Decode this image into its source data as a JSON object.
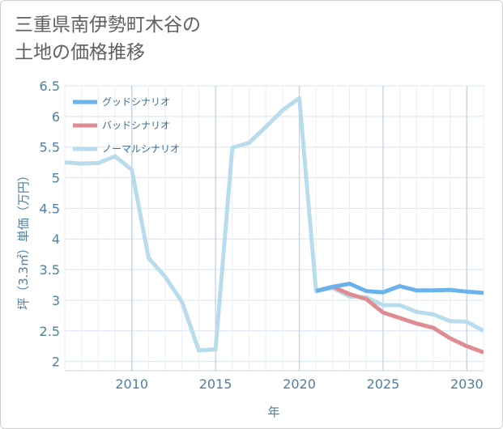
{
  "chart_data": {
    "type": "line",
    "title": "三重県南伊勢町木谷の土地の価格推移",
    "title_lines": [
      "三重県南伊勢町木谷の",
      "土地の価格推移"
    ],
    "xlabel": "年",
    "ylabel": "坪（3.3㎡）単価（万円）",
    "xlim": [
      2006,
      2031
    ],
    "ylim": [
      1.85,
      6.5
    ],
    "xticks": [
      2010,
      2015,
      2020,
      2025,
      2030
    ],
    "yticks": [
      2,
      2.5,
      3,
      3.5,
      4,
      4.5,
      5,
      5.5,
      6,
      6.5
    ],
    "ytick_labels": [
      "2",
      "2.5",
      "3",
      "3.5",
      "4",
      "4.5",
      "5",
      "5.5",
      "6",
      "6.5"
    ],
    "grid": true,
    "legend_position": "top-left",
    "series": [
      {
        "name": "グッドシナリオ",
        "color": "#6ab2ea",
        "x": [
          2021,
          2022,
          2023,
          2024,
          2025,
          2026,
          2027,
          2028,
          2029,
          2030,
          2031
        ],
        "values": [
          3.15,
          3.22,
          3.27,
          3.15,
          3.13,
          3.23,
          3.16,
          3.16,
          3.17,
          3.14,
          3.12
        ]
      },
      {
        "name": "バッドシナリオ",
        "color": "#de8c92",
        "x": [
          2021,
          2022,
          2023,
          2024,
          2025,
          2026,
          2027,
          2028,
          2029,
          2030,
          2031
        ],
        "values": [
          3.15,
          3.22,
          3.1,
          3.02,
          2.8,
          2.71,
          2.62,
          2.55,
          2.38,
          2.25,
          2.15
        ]
      },
      {
        "name": "ノーマルシナリオ",
        "color": "#b9dced",
        "x": [
          2006,
          2007,
          2008,
          2009,
          2010,
          2011,
          2012,
          2013,
          2014,
          2015,
          2016,
          2017,
          2018,
          2019,
          2020,
          2021,
          2022,
          2023,
          2024,
          2025,
          2026,
          2027,
          2028,
          2029,
          2030,
          2031
        ],
        "values": [
          5.25,
          5.23,
          5.24,
          5.35,
          5.13,
          3.69,
          3.38,
          2.97,
          2.18,
          2.2,
          5.49,
          5.57,
          5.83,
          6.1,
          6.3,
          3.15,
          3.2,
          3.06,
          3.05,
          2.92,
          2.92,
          2.81,
          2.77,
          2.66,
          2.65,
          2.5
        ]
      }
    ]
  }
}
